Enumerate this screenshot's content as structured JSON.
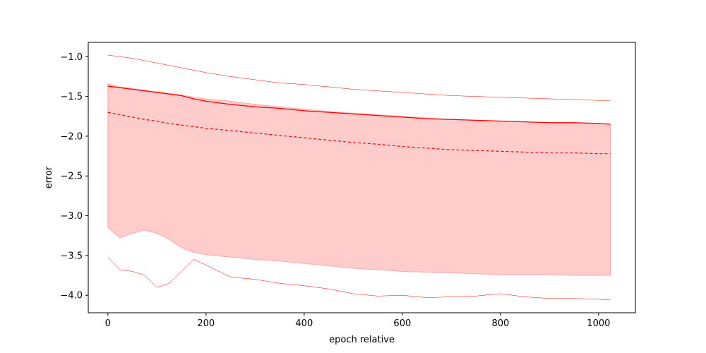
{
  "chart_data": {
    "type": "line",
    "title": "",
    "xlabel": "epoch relative",
    "ylabel": "error",
    "xlim": [
      -40,
      1075
    ],
    "ylim": [
      -4.22,
      -0.82
    ],
    "xticks": [
      0,
      200,
      400,
      600,
      800,
      1000
    ],
    "yticks": [
      -4.0,
      -3.5,
      -3.0,
      -2.5,
      -2.0,
      -1.5,
      -1.0
    ],
    "grid": false,
    "legend": "none",
    "colors": {
      "line": "#ff0000",
      "band": "#ffcccc",
      "band_edge": "#ffaaaa"
    },
    "x": [
      0,
      25,
      50,
      75,
      100,
      125,
      150,
      175,
      200,
      250,
      300,
      350,
      400,
      450,
      500,
      550,
      600,
      650,
      700,
      750,
      800,
      850,
      900,
      950,
      1000,
      1024
    ],
    "series": [
      {
        "style": "solid",
        "values": [
          -1.37,
          -1.39,
          -1.41,
          -1.43,
          -1.45,
          -1.47,
          -1.49,
          -1.53,
          -1.56,
          -1.6,
          -1.63,
          -1.65,
          -1.68,
          -1.7,
          -1.72,
          -1.74,
          -1.76,
          -1.78,
          -1.79,
          -1.8,
          -1.81,
          -1.82,
          -1.83,
          -1.83,
          -1.84,
          -1.85
        ]
      },
      {
        "style": "dashed",
        "values": [
          -1.7,
          -1.73,
          -1.76,
          -1.79,
          -1.81,
          -1.84,
          -1.86,
          -1.88,
          -1.9,
          -1.93,
          -1.96,
          -1.99,
          -2.02,
          -2.05,
          -2.08,
          -2.1,
          -2.13,
          -2.15,
          -2.17,
          -2.18,
          -2.19,
          -2.2,
          -2.21,
          -2.21,
          -2.22,
          -2.22
        ]
      },
      {
        "style": "thin-upper",
        "values": [
          -0.98,
          -1.0,
          -1.02,
          -1.05,
          -1.08,
          -1.11,
          -1.14,
          -1.17,
          -1.2,
          -1.25,
          -1.29,
          -1.33,
          -1.35,
          -1.38,
          -1.41,
          -1.43,
          -1.45,
          -1.47,
          -1.49,
          -1.5,
          -1.51,
          -1.52,
          -1.53,
          -1.54,
          -1.55,
          -1.55
        ]
      },
      {
        "style": "thin-lower",
        "values": [
          -3.52,
          -3.68,
          -3.7,
          -3.75,
          -3.9,
          -3.85,
          -3.7,
          -3.55,
          -3.62,
          -3.77,
          -3.8,
          -3.85,
          -3.88,
          -3.92,
          -3.98,
          -4.01,
          -4.0,
          -4.03,
          -4.02,
          -4.01,
          -3.98,
          -4.02,
          -4.04,
          -4.04,
          -4.05,
          -4.06
        ]
      }
    ],
    "band": {
      "upper": [
        -1.34,
        -1.38,
        -1.4,
        -1.42,
        -1.44,
        -1.46,
        -1.48,
        -1.51,
        -1.53,
        -1.56,
        -1.6,
        -1.63,
        -1.66,
        -1.69,
        -1.71,
        -1.73,
        -1.75,
        -1.77,
        -1.79,
        -1.8,
        -1.81,
        -1.82,
        -1.83,
        -1.83,
        -1.84,
        -1.85
      ],
      "lower": [
        -3.15,
        -3.28,
        -3.22,
        -3.18,
        -3.22,
        -3.3,
        -3.4,
        -3.46,
        -3.49,
        -3.52,
        -3.55,
        -3.57,
        -3.6,
        -3.63,
        -3.66,
        -3.68,
        -3.7,
        -3.71,
        -3.72,
        -3.73,
        -3.74,
        -3.74,
        -3.74,
        -3.75,
        -3.75,
        -3.75
      ]
    }
  }
}
